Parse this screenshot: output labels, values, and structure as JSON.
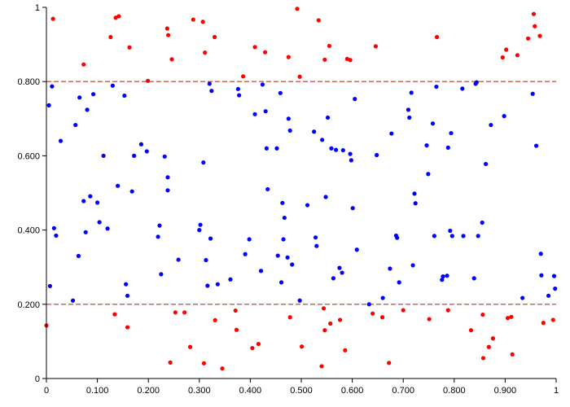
{
  "chart_data": {
    "type": "scatter",
    "title": "",
    "xlabel": "",
    "ylabel": "",
    "xlim": [
      0,
      1
    ],
    "ylim": [
      0,
      1
    ],
    "grid": false,
    "legend": "none",
    "x_ticks": [
      {
        "value": 0,
        "label": "0"
      },
      {
        "value": 0.1,
        "label": "0.100"
      },
      {
        "value": 0.2,
        "label": "0.200"
      },
      {
        "value": 0.3,
        "label": "0.300"
      },
      {
        "value": 0.4,
        "label": "0.400"
      },
      {
        "value": 0.5,
        "label": "0.500"
      },
      {
        "value": 0.6,
        "label": "0.600"
      },
      {
        "value": 0.7,
        "label": "0.700"
      },
      {
        "value": 0.8,
        "label": "0.800"
      },
      {
        "value": 0.9,
        "label": "0.900"
      },
      {
        "value": 1,
        "label": "1"
      }
    ],
    "y_ticks": [
      {
        "value": 0,
        "label": "0"
      },
      {
        "value": 0.2,
        "label": "0.200"
      },
      {
        "value": 0.4,
        "label": "0.400"
      },
      {
        "value": 0.6,
        "label": "0.600"
      },
      {
        "value": 0.8,
        "label": "0.800"
      },
      {
        "value": 1,
        "label": "1"
      }
    ],
    "thresholds": [
      {
        "y": 0.2,
        "color": "#b03a2e",
        "style": "dashed"
      },
      {
        "y": 0.8,
        "color": "#b03a2e",
        "style": "dashed"
      }
    ],
    "colors": {
      "inside": "#0000ff",
      "outside": "#ff0000",
      "threshold": "#b03a2e",
      "axis": "#000000"
    },
    "series": [
      {
        "color": "#0000ff",
        "points": [
          [
            0.005,
            0.736
          ],
          [
            0.007,
            0.249
          ],
          [
            0.011,
            0.787
          ],
          [
            0.015,
            0.405
          ],
          [
            0.019,
            0.385
          ],
          [
            0.028,
            0.64
          ],
          [
            0.052,
            0.21
          ],
          [
            0.057,
            0.683
          ],
          [
            0.063,
            0.33
          ],
          [
            0.065,
            0.757
          ],
          [
            0.073,
            0.478
          ],
          [
            0.077,
            0.394
          ],
          [
            0.08,
            0.724
          ],
          [
            0.086,
            0.491
          ],
          [
            0.092,
            0.766
          ],
          [
            0.1,
            0.474
          ],
          [
            0.104,
            0.421
          ],
          [
            0.112,
            0.6
          ],
          [
            0.12,
            0.404
          ],
          [
            0.13,
            0.789
          ],
          [
            0.14,
            0.519
          ],
          [
            0.153,
            0.762
          ],
          [
            0.156,
            0.254
          ],
          [
            0.159,
            0.223
          ],
          [
            0.168,
            0.504
          ],
          [
            0.172,
            0.6
          ],
          [
            0.186,
            0.631
          ],
          [
            0.197,
            0.612
          ],
          [
            0.219,
            0.382
          ],
          [
            0.222,
            0.412
          ],
          [
            0.225,
            0.281
          ],
          [
            0.232,
            0.598
          ],
          [
            0.238,
            0.542
          ],
          [
            0.238,
            0.507
          ],
          [
            0.259,
            0.32
          ],
          [
            0.3,
            0.4
          ],
          [
            0.302,
            0.414
          ],
          [
            0.308,
            0.582
          ],
          [
            0.313,
            0.319
          ],
          [
            0.316,
            0.25
          ],
          [
            0.32,
            0.794
          ],
          [
            0.322,
            0.377
          ],
          [
            0.324,
            0.775
          ],
          [
            0.336,
            0.254
          ],
          [
            0.361,
            0.267
          ],
          [
            0.376,
            0.78
          ],
          [
            0.378,
            0.763
          ],
          [
            0.39,
            0.335
          ],
          [
            0.398,
            0.375
          ],
          [
            0.409,
            0.712
          ],
          [
            0.421,
            0.29
          ],
          [
            0.424,
            0.792
          ],
          [
            0.43,
            0.72
          ],
          [
            0.432,
            0.62
          ],
          [
            0.434,
            0.51
          ],
          [
            0.452,
            0.62
          ],
          [
            0.454,
            0.331
          ],
          [
            0.459,
            0.769
          ],
          [
            0.461,
            0.259
          ],
          [
            0.463,
            0.473
          ],
          [
            0.465,
            0.375
          ],
          [
            0.467,
            0.433
          ],
          [
            0.473,
            0.326
          ],
          [
            0.475,
            0.7
          ],
          [
            0.478,
            0.668
          ],
          [
            0.482,
            0.307
          ],
          [
            0.497,
            0.21
          ],
          [
            0.512,
            0.467
          ],
          [
            0.525,
            0.665
          ],
          [
            0.528,
            0.38
          ],
          [
            0.53,
            0.357
          ],
          [
            0.541,
            0.643
          ],
          [
            0.548,
            0.489
          ],
          [
            0.552,
            0.703
          ],
          [
            0.559,
            0.62
          ],
          [
            0.563,
            0.27
          ],
          [
            0.568,
            0.616
          ],
          [
            0.575,
            0.298
          ],
          [
            0.58,
            0.285
          ],
          [
            0.582,
            0.615
          ],
          [
            0.596,
            0.605
          ],
          [
            0.598,
            0.588
          ],
          [
            0.601,
            0.459
          ],
          [
            0.605,
            0.753
          ],
          [
            0.609,
            0.347
          ],
          [
            0.633,
            0.2
          ],
          [
            0.648,
            0.602
          ],
          [
            0.66,
            0.217
          ],
          [
            0.674,
            0.296
          ],
          [
            0.677,
            0.66
          ],
          [
            0.686,
            0.385
          ],
          [
            0.688,
            0.379
          ],
          [
            0.692,
            0.259
          ],
          [
            0.71,
            0.724
          ],
          [
            0.712,
            0.703
          ],
          [
            0.716,
            0.77
          ],
          [
            0.719,
            0.305
          ],
          [
            0.722,
            0.498
          ],
          [
            0.724,
            0.472
          ],
          [
            0.746,
            0.628
          ],
          [
            0.749,
            0.551
          ],
          [
            0.758,
            0.687
          ],
          [
            0.761,
            0.384
          ],
          [
            0.765,
            0.786
          ],
          [
            0.776,
            0.266
          ],
          [
            0.778,
            0.275
          ],
          [
            0.786,
            0.277
          ],
          [
            0.788,
            0.622
          ],
          [
            0.792,
            0.398
          ],
          [
            0.794,
            0.661
          ],
          [
            0.796,
            0.384
          ],
          [
            0.816,
            0.781
          ],
          [
            0.818,
            0.384
          ],
          [
            0.839,
            0.27
          ],
          [
            0.842,
            0.794
          ],
          [
            0.844,
            0.798
          ],
          [
            0.847,
            0.384
          ],
          [
            0.855,
            0.42
          ],
          [
            0.862,
            0.578
          ],
          [
            0.872,
            0.683
          ],
          [
            0.898,
            0.707
          ],
          [
            0.934,
            0.217
          ],
          [
            0.954,
            0.767
          ],
          [
            0.961,
            0.627
          ],
          [
            0.97,
            0.336
          ],
          [
            0.971,
            0.278
          ],
          [
            0.985,
            0.223
          ],
          [
            0.996,
            0.276
          ],
          [
            0.998,
            0.242
          ]
        ]
      },
      {
        "color": "#ff0000",
        "points": [
          [
            0.0,
            0.143
          ],
          [
            0.013,
            0.969
          ],
          [
            0.073,
            0.846
          ],
          [
            0.126,
            0.92
          ],
          [
            0.134,
            0.173
          ],
          [
            0.136,
            0.972
          ],
          [
            0.142,
            0.976
          ],
          [
            0.159,
            0.138
          ],
          [
            0.163,
            0.892
          ],
          [
            0.199,
            0.802
          ],
          [
            0.237,
            0.943
          ],
          [
            0.239,
            0.925
          ],
          [
            0.243,
            0.043
          ],
          [
            0.246,
            0.86
          ],
          [
            0.253,
            0.178
          ],
          [
            0.271,
            0.178
          ],
          [
            0.282,
            0.085
          ],
          [
            0.288,
            0.967
          ],
          [
            0.307,
            0.961
          ],
          [
            0.309,
            0.041
          ],
          [
            0.311,
            0.878
          ],
          [
            0.33,
            0.92
          ],
          [
            0.331,
            0.157
          ],
          [
            0.345,
            0.027
          ],
          [
            0.371,
            0.183
          ],
          [
            0.373,
            0.131
          ],
          [
            0.386,
            0.814
          ],
          [
            0.404,
            0.082
          ],
          [
            0.409,
            0.893
          ],
          [
            0.416,
            0.093
          ],
          [
            0.429,
            0.879
          ],
          [
            0.475,
            0.866
          ],
          [
            0.478,
            0.165
          ],
          [
            0.492,
            0.996
          ],
          [
            0.497,
            0.813
          ],
          [
            0.501,
            0.086
          ],
          [
            0.534,
            0.965
          ],
          [
            0.544,
            0.189
          ],
          [
            0.546,
            0.859
          ],
          [
            0.546,
            0.13
          ],
          [
            0.555,
            0.896
          ],
          [
            0.557,
            0.148
          ],
          [
            0.54,
            0.033
          ],
          [
            0.576,
            0.158
          ],
          [
            0.586,
            0.076
          ],
          [
            0.59,
            0.861
          ],
          [
            0.596,
            0.858
          ],
          [
            0.64,
            0.175
          ],
          [
            0.646,
            0.895
          ],
          [
            0.659,
            0.165
          ],
          [
            0.672,
            0.042
          ],
          [
            0.7,
            0.184
          ],
          [
            0.751,
            0.16
          ],
          [
            0.766,
            0.92
          ],
          [
            0.788,
            0.184
          ],
          [
            0.833,
            0.13
          ],
          [
            0.856,
            0.172
          ],
          [
            0.857,
            0.055
          ],
          [
            0.868,
            0.085
          ],
          [
            0.876,
            0.108
          ],
          [
            0.895,
            0.865
          ],
          [
            0.902,
            0.886
          ],
          [
            0.905,
            0.163
          ],
          [
            0.912,
            0.166
          ],
          [
            0.914,
            0.065
          ],
          [
            0.924,
            0.871
          ],
          [
            0.945,
            0.916
          ],
          [
            0.956,
            0.982
          ],
          [
            0.958,
            0.949
          ],
          [
            0.968,
            0.923
          ],
          [
            0.975,
            0.15
          ],
          [
            0.994,
            0.158
          ]
        ]
      }
    ]
  }
}
